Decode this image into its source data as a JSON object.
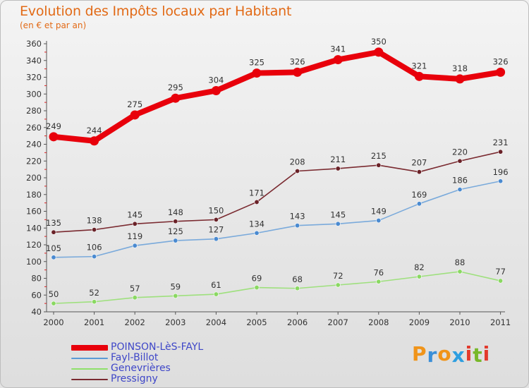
{
  "page": {
    "title": "Evolution des Impôts locaux par Habitant",
    "subtitle": "(en € et par an)"
  },
  "logo": {
    "text": "Proxiti",
    "letters": [
      "P",
      "r",
      "o",
      "x",
      "i",
      "t",
      "i"
    ],
    "colors": [
      "#f0941a",
      "#3a8fd8",
      "#f0941a",
      "#2d9ee0",
      "#e33a2c",
      "#78b82a",
      "#e33a2c"
    ]
  },
  "chart_data": {
    "type": "line",
    "title": "Evolution des Impôts locaux par Habitant",
    "subtitle": "(en € et par an)",
    "xlabel": "",
    "ylabel": "",
    "categories": [
      "2000",
      "2001",
      "2002",
      "2003",
      "2004",
      "2005",
      "2006",
      "2007",
      "2008",
      "2009",
      "2010",
      "2011"
    ],
    "ylim": [
      40,
      360
    ],
    "yticks": [
      40,
      60,
      80,
      100,
      120,
      140,
      160,
      180,
      200,
      220,
      240,
      260,
      280,
      300,
      320,
      340,
      360
    ],
    "grid": false,
    "legend_position": "bottom-left",
    "series": [
      {
        "name": "POINSON-LèS-FAYL",
        "color": "#e8000b",
        "line_color": "#e8000b",
        "marker_color": "#e8000b",
        "emphasis": true,
        "values": [
          249,
          244,
          275,
          295,
          304,
          325,
          326,
          341,
          350,
          321,
          318,
          326
        ]
      },
      {
        "name": "Fayl-Billot",
        "color": "#5a9ad6",
        "line_color": "#7aaadb",
        "marker_color": "#4a8ad0",
        "emphasis": false,
        "values": [
          105,
          106,
          119,
          125,
          127,
          134,
          143,
          145,
          149,
          169,
          186,
          196
        ]
      },
      {
        "name": "Genevrières",
        "color": "#8fe06a",
        "line_color": "#9ee07d",
        "marker_color": "#8ad862",
        "emphasis": false,
        "values": [
          50,
          52,
          57,
          59,
          61,
          69,
          68,
          72,
          76,
          82,
          88,
          77
        ]
      },
      {
        "name": "Pressigny",
        "color": "#7a2a30",
        "line_color": "#7a2a30",
        "marker_color": "#6a2228",
        "emphasis": false,
        "values": [
          135,
          138,
          145,
          148,
          150,
          171,
          208,
          211,
          215,
          207,
          220,
          231
        ]
      }
    ]
  }
}
